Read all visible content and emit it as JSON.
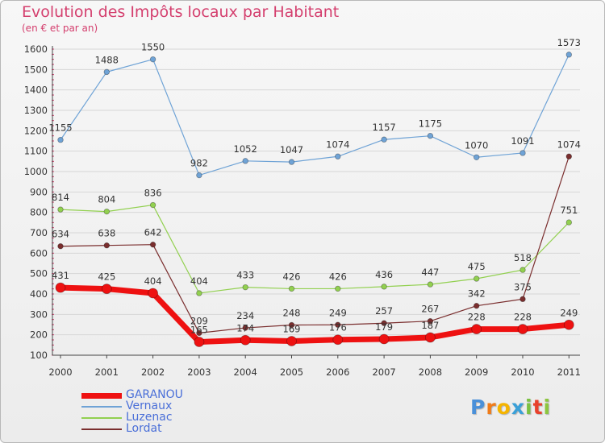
{
  "header": {
    "title": "Evolution des Impôts locaux par Habitant",
    "subtitle": "(en € et par an)"
  },
  "chart_data": {
    "type": "line",
    "title": "Evolution des Impôts locaux par Habitant",
    "subtitle": "(en € et par an)",
    "xlabel": "",
    "ylabel": "",
    "categories": [
      "2000",
      "2001",
      "2002",
      "2003",
      "2004",
      "2005",
      "2006",
      "2007",
      "2008",
      "2009",
      "2010",
      "2011"
    ],
    "ylim": [
      100,
      1600
    ],
    "yticks": [
      "100",
      "200",
      "300",
      "400",
      "500",
      "600",
      "700",
      "800",
      "900",
      "1000",
      "1100",
      "1200",
      "1300",
      "1400",
      "1500",
      "1600"
    ],
    "grid": "horizontal",
    "legend": "bottom-left",
    "series": [
      {
        "name": "GARANOU",
        "color": "#ee1111",
        "values": [
          431,
          425,
          404,
          165,
          174,
          169,
          176,
          179,
          187,
          228,
          228,
          249
        ],
        "labels": [
          "431",
          "425",
          "404",
          "165",
          "174",
          "169",
          "176",
          "179",
          "187",
          "228",
          "228",
          "249"
        ]
      },
      {
        "name": "Vernaux",
        "color": "#6fa3d6",
        "values": [
          1155,
          1488,
          1550,
          982,
          1052,
          1047,
          1074,
          1157,
          1175,
          1070,
          1091,
          1573
        ],
        "labels": [
          "1155",
          "1488",
          "1550",
          "982",
          "1052",
          "1047",
          "1074",
          "1157",
          "1175",
          "1070",
          "1091",
          "1573"
        ]
      },
      {
        "name": "Luzenac",
        "color": "#92d050",
        "values": [
          814,
          804,
          836,
          404,
          433,
          426,
          426,
          436,
          447,
          475,
          518,
          751
        ],
        "labels": [
          "814",
          "804",
          "836",
          "404",
          "433",
          "426",
          "426",
          "436",
          "447",
          "475",
          "518",
          "751"
        ]
      },
      {
        "name": "Lordat",
        "color": "#7a2e2e",
        "values": [
          634,
          638,
          642,
          209,
          234,
          248,
          249,
          257,
          267,
          342,
          375,
          1074
        ],
        "labels": [
          "634",
          "638",
          "642",
          "209",
          "234",
          "248",
          "249",
          "257",
          "267",
          "342",
          "375",
          "1074"
        ]
      }
    ]
  },
  "legend": {
    "items": [
      {
        "label": "GARANOU",
        "color": "#ee1111"
      },
      {
        "label": "Vernaux",
        "color": "#6fa3d6"
      },
      {
        "label": "Luzenac",
        "color": "#92d050"
      },
      {
        "label": "Lordat",
        "color": "#7a2e2e"
      }
    ]
  },
  "logo": {
    "text": "Proxiti",
    "letters": [
      {
        "char": "P",
        "color": "#4a90d9"
      },
      {
        "char": "r",
        "color": "#f07c1a"
      },
      {
        "char": "o",
        "color": "#f5b400"
      },
      {
        "char": "x",
        "color": "#3aa0d8"
      },
      {
        "char": "i",
        "color": "#7bc142"
      },
      {
        "char": "t",
        "color": "#e8412c"
      },
      {
        "char": "i",
        "color": "#8dc63f"
      }
    ]
  }
}
